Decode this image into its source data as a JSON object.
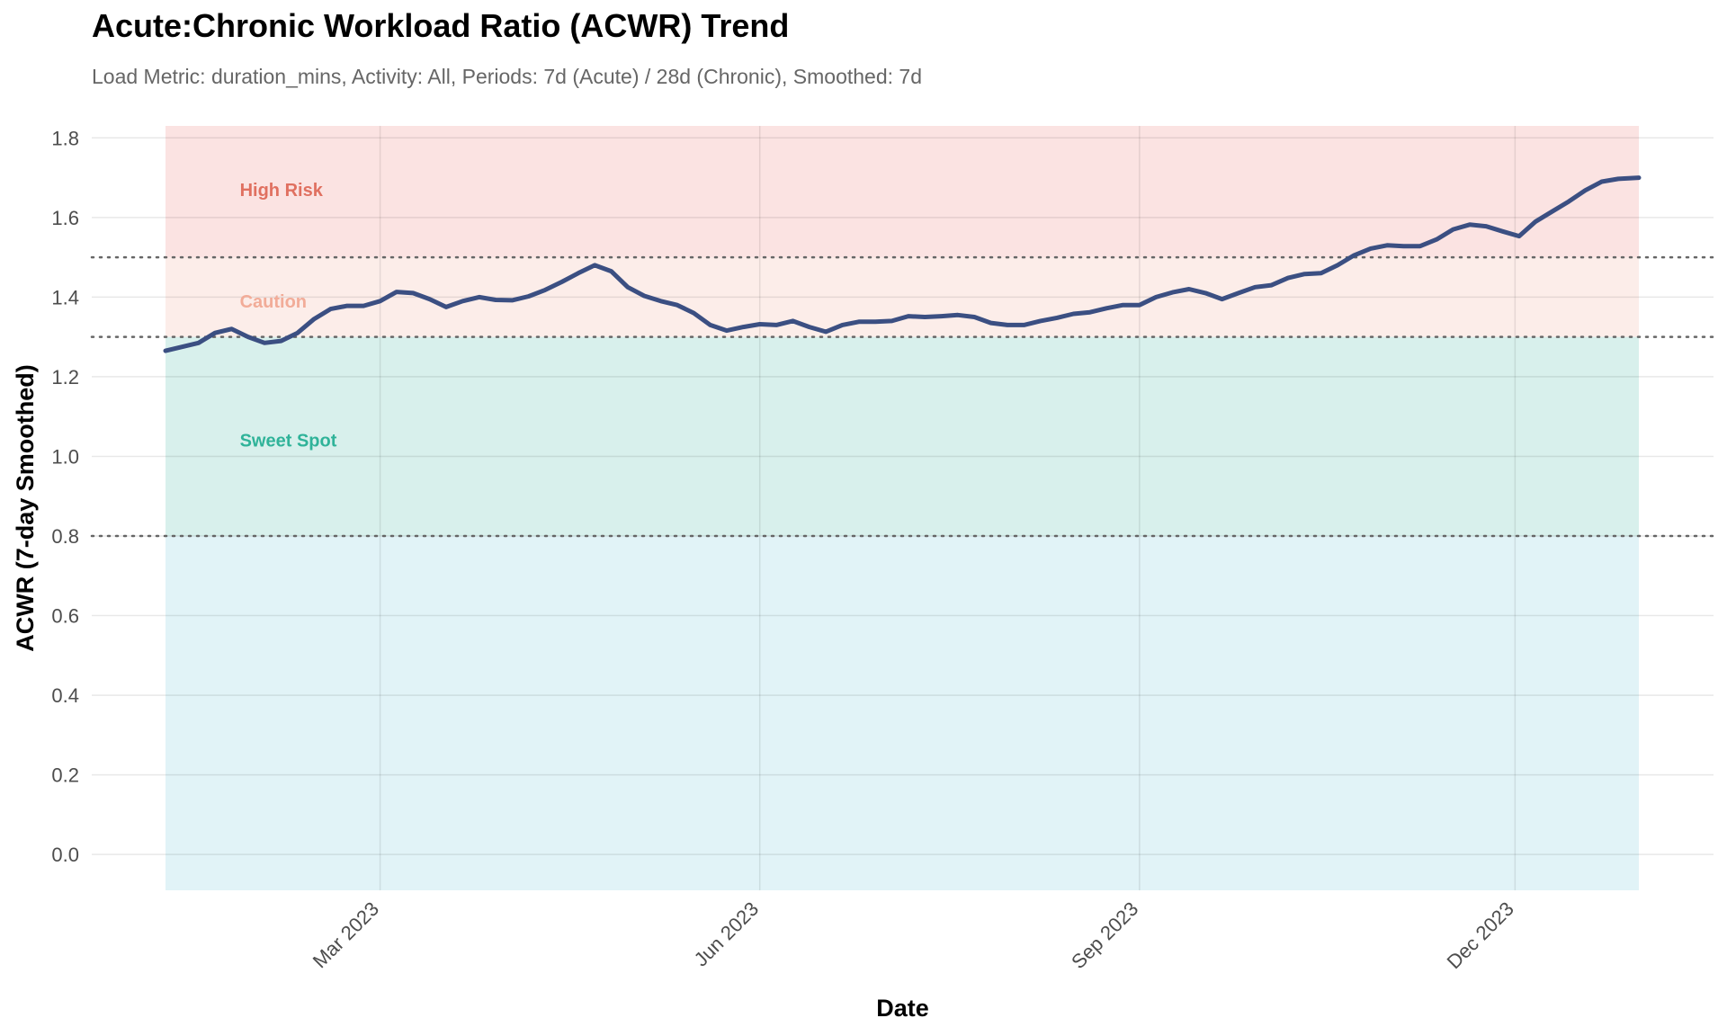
{
  "chart_data": {
    "type": "line",
    "title": "Acute:Chronic Workload Ratio (ACWR) Trend",
    "subtitle": "Load Metric: duration_mins, Activity: All, Periods: 7d (Acute) / 28d (Chronic), Smoothed: 7d",
    "xlabel": "Date",
    "ylabel": "ACWR (7-day Smoothed)",
    "ylim": [
      -0.09,
      1.83
    ],
    "xlim": [
      "2023-01-08",
      "2023-12-31"
    ],
    "x_ticks": [
      {
        "date": "2023-03-01",
        "label": "Mar 2023"
      },
      {
        "date": "2023-06-01",
        "label": "Jun 2023"
      },
      {
        "date": "2023-09-01",
        "label": "Sep 2023"
      },
      {
        "date": "2023-12-01",
        "label": "Dec 2023"
      }
    ],
    "y_ticks": [
      "0.0",
      "0.2",
      "0.4",
      "0.6",
      "0.8",
      "1.0",
      "1.2",
      "1.4",
      "1.6",
      "1.8"
    ],
    "y_tick_values": [
      0,
      0.2,
      0.4,
      0.6,
      0.8,
      1.0,
      1.2,
      1.4,
      1.6,
      1.8
    ],
    "grid": true,
    "threshold_lines": [
      0.8,
      1.3,
      1.5
    ],
    "zones": [
      {
        "label": "",
        "from": -0.09,
        "to": 1.3,
        "color": "#e1f3f7"
      },
      {
        "label": "",
        "from": 0.8,
        "to": 1.3,
        "color": "#d8f0ec"
      },
      {
        "label": "",
        "from": 1.3,
        "to": 1.5,
        "color": "#fcede9"
      },
      {
        "label": "",
        "from": 1.5,
        "to": 1.83,
        "color": "#fbe3e2"
      }
    ],
    "annotations": [
      {
        "text": "High Risk",
        "date": "2023-01-26",
        "y": 1.67,
        "color": "#e07060"
      },
      {
        "text": "Caution",
        "date": "2023-01-26",
        "y": 1.39,
        "color": "#f2ac98"
      },
      {
        "text": "Sweet Spot",
        "date": "2023-01-26",
        "y": 1.04,
        "color": "#2fb399"
      }
    ],
    "series": [
      {
        "name": "",
        "color": "#3b4f82",
        "points": [
          [
            "2023-01-08",
            1.265
          ],
          [
            "2023-01-12",
            1.275
          ],
          [
            "2023-01-16",
            1.285
          ],
          [
            "2023-01-20",
            1.31
          ],
          [
            "2023-01-24",
            1.32
          ],
          [
            "2023-01-28",
            1.3
          ],
          [
            "2023-02-01",
            1.285
          ],
          [
            "2023-02-05",
            1.29
          ],
          [
            "2023-02-09",
            1.31
          ],
          [
            "2023-02-13",
            1.345
          ],
          [
            "2023-02-17",
            1.37
          ],
          [
            "2023-02-21",
            1.378
          ],
          [
            "2023-02-25",
            1.378
          ],
          [
            "2023-03-01",
            1.39
          ],
          [
            "2023-03-05",
            1.413
          ],
          [
            "2023-03-09",
            1.41
          ],
          [
            "2023-03-13",
            1.395
          ],
          [
            "2023-03-17",
            1.375
          ],
          [
            "2023-03-21",
            1.39
          ],
          [
            "2023-03-25",
            1.4
          ],
          [
            "2023-03-29",
            1.393
          ],
          [
            "2023-04-02",
            1.392
          ],
          [
            "2023-04-06",
            1.402
          ],
          [
            "2023-04-10",
            1.418
          ],
          [
            "2023-04-14",
            1.438
          ],
          [
            "2023-04-18",
            1.46
          ],
          [
            "2023-04-22",
            1.48
          ],
          [
            "2023-04-26",
            1.465
          ],
          [
            "2023-04-30",
            1.425
          ],
          [
            "2023-05-04",
            1.403
          ],
          [
            "2023-05-08",
            1.39
          ],
          [
            "2023-05-12",
            1.38
          ],
          [
            "2023-05-16",
            1.36
          ],
          [
            "2023-05-20",
            1.33
          ],
          [
            "2023-05-24",
            1.316
          ],
          [
            "2023-05-28",
            1.325
          ],
          [
            "2023-06-01",
            1.332
          ],
          [
            "2023-06-05",
            1.33
          ],
          [
            "2023-06-09",
            1.34
          ],
          [
            "2023-06-13",
            1.325
          ],
          [
            "2023-06-17",
            1.313
          ],
          [
            "2023-06-21",
            1.33
          ],
          [
            "2023-06-25",
            1.338
          ],
          [
            "2023-06-29",
            1.338
          ],
          [
            "2023-07-03",
            1.34
          ],
          [
            "2023-07-07",
            1.352
          ],
          [
            "2023-07-11",
            1.35
          ],
          [
            "2023-07-15",
            1.352
          ],
          [
            "2023-07-19",
            1.355
          ],
          [
            "2023-07-23",
            1.35
          ],
          [
            "2023-07-27",
            1.335
          ],
          [
            "2023-07-31",
            1.33
          ],
          [
            "2023-08-04",
            1.33
          ],
          [
            "2023-08-08",
            1.34
          ],
          [
            "2023-08-12",
            1.348
          ],
          [
            "2023-08-16",
            1.358
          ],
          [
            "2023-08-20",
            1.362
          ],
          [
            "2023-08-24",
            1.372
          ],
          [
            "2023-08-28",
            1.38
          ],
          [
            "2023-09-01",
            1.38
          ],
          [
            "2023-09-05",
            1.4
          ],
          [
            "2023-09-09",
            1.412
          ],
          [
            "2023-09-13",
            1.42
          ],
          [
            "2023-09-17",
            1.41
          ],
          [
            "2023-09-21",
            1.395
          ],
          [
            "2023-09-25",
            1.41
          ],
          [
            "2023-09-29",
            1.425
          ],
          [
            "2023-10-03",
            1.43
          ],
          [
            "2023-10-07",
            1.448
          ],
          [
            "2023-10-11",
            1.458
          ],
          [
            "2023-10-15",
            1.46
          ],
          [
            "2023-10-19",
            1.48
          ],
          [
            "2023-10-23",
            1.505
          ],
          [
            "2023-10-27",
            1.522
          ],
          [
            "2023-10-31",
            1.53
          ],
          [
            "2023-11-04",
            1.528
          ],
          [
            "2023-11-08",
            1.528
          ],
          [
            "2023-11-12",
            1.545
          ],
          [
            "2023-11-16",
            1.57
          ],
          [
            "2023-11-20",
            1.582
          ],
          [
            "2023-11-24",
            1.578
          ],
          [
            "2023-11-28",
            1.565
          ],
          [
            "2023-12-02",
            1.553
          ],
          [
            "2023-12-06",
            1.59
          ],
          [
            "2023-12-10",
            1.615
          ],
          [
            "2023-12-14",
            1.64
          ],
          [
            "2023-12-18",
            1.668
          ],
          [
            "2023-12-22",
            1.69
          ],
          [
            "2023-12-26",
            1.697
          ],
          [
            "2023-12-31",
            1.7
          ]
        ]
      }
    ]
  }
}
